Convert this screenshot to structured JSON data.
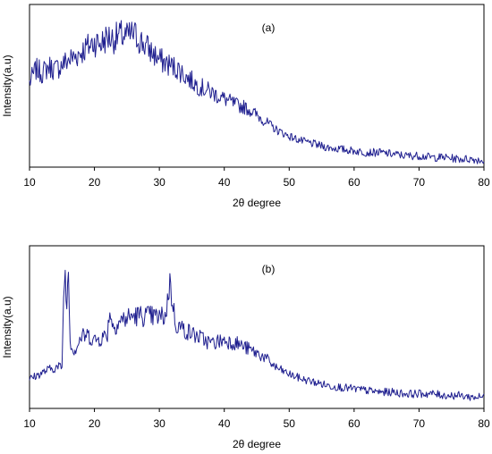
{
  "chart_data": [
    {
      "type": "line",
      "panel_label": "(a)",
      "xlabel": "2θ degree",
      "ylabel": "Intensity(a.u)",
      "xlim": [
        10,
        80
      ],
      "xticks": [
        "10",
        "20",
        "30",
        "40",
        "50",
        "60",
        "70",
        "80"
      ],
      "ylim": [
        0,
        100
      ],
      "yticks_shown": false,
      "grid": false,
      "line_color": "#1f1f8f",
      "series": [
        {
          "x": [
            10,
            11,
            12,
            13,
            14,
            15,
            16,
            17,
            18,
            19,
            20,
            21,
            22,
            23,
            24,
            25,
            26,
            27,
            28,
            29,
            30,
            31,
            32,
            33,
            34,
            35,
            36,
            37,
            38,
            39,
            40,
            41,
            42,
            43,
            44,
            45,
            46,
            47,
            48,
            49,
            50,
            52,
            54,
            56,
            58,
            60,
            62,
            64,
            66,
            68,
            70,
            72,
            74,
            76,
            78,
            80
          ],
          "values": [
            52,
            60,
            58,
            62,
            60,
            63,
            66,
            68,
            71,
            74,
            77,
            76,
            80,
            79,
            81,
            80,
            82,
            78,
            74,
            70,
            66,
            64,
            62,
            60,
            56,
            53,
            50,
            48,
            46,
            44,
            42,
            40,
            38,
            37,
            35,
            32,
            29,
            26,
            23,
            21,
            19,
            16,
            14,
            12,
            11,
            10,
            9,
            9,
            8,
            7,
            7,
            6,
            6,
            5,
            5,
            4
          ]
        }
      ]
    },
    {
      "type": "line",
      "panel_label": "(b)",
      "xlabel": "2θ degree",
      "ylabel": "Intensity(a.u)",
      "xlim": [
        10,
        80
      ],
      "xticks": [
        "10",
        "20",
        "30",
        "40",
        "50",
        "60",
        "70",
        "80"
      ],
      "ylim": [
        0,
        100
      ],
      "yticks_shown": false,
      "grid": false,
      "line_color": "#1f1f8f",
      "series": [
        {
          "x": [
            10,
            11,
            12,
            13,
            14,
            15,
            15.4,
            15.7,
            16,
            16.3,
            17,
            18,
            19,
            20,
            21,
            22,
            22.4,
            22.8,
            24,
            26,
            28,
            30,
            31,
            31.6,
            32,
            32.5,
            34,
            36,
            38,
            40,
            42,
            44,
            46,
            48,
            50,
            52,
            54,
            56,
            58,
            60,
            62,
            64,
            66,
            68,
            70,
            72,
            74,
            76,
            78,
            80
          ],
          "values": [
            18,
            20,
            22,
            24,
            25,
            26,
            90,
            60,
            88,
            38,
            36,
            44,
            45,
            42,
            43,
            46,
            62,
            50,
            54,
            57,
            57,
            56,
            57,
            78,
            66,
            52,
            48,
            44,
            40,
            42,
            40,
            36,
            32,
            25,
            21,
            18,
            16,
            14,
            13,
            12,
            11,
            10,
            10,
            9,
            9,
            9,
            8,
            8,
            7,
            7
          ]
        }
      ]
    }
  ]
}
